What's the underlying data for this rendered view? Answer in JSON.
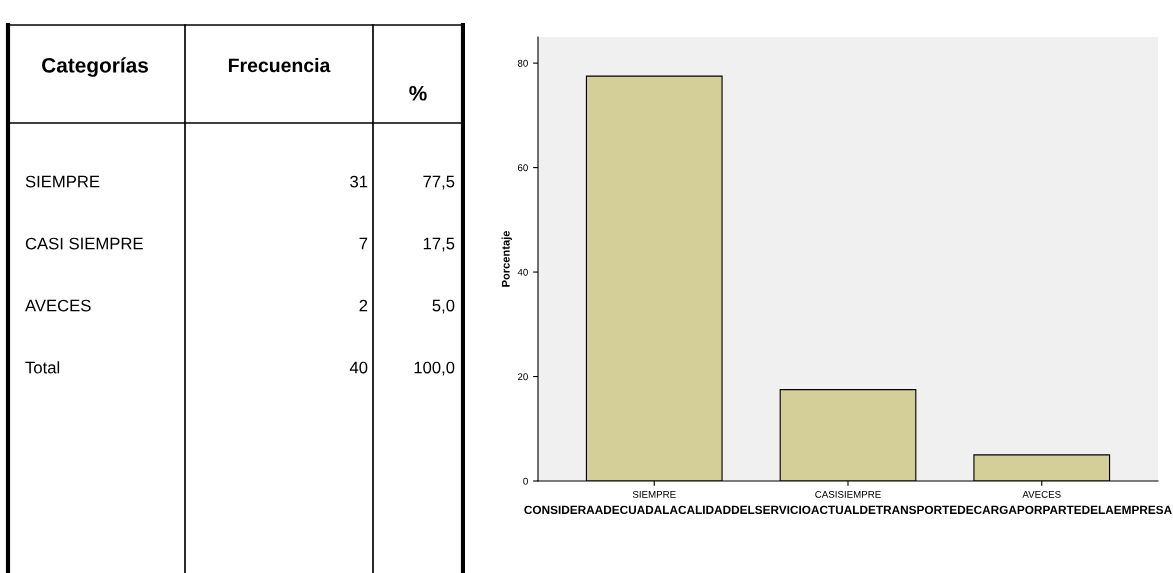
{
  "chart_data": [
    {
      "type": "other",
      "annotations": [
        "Categorías",
        "Frecuencia",
        "%",
        "SIEMPRE",
        "31",
        "77,5",
        "CASI SIEMPRE",
        "7",
        "17,5",
        "AVECES",
        "2",
        "5,0",
        "Total",
        "40",
        "100,0"
      ]
    },
    {
      "type": "bar",
      "categories": [
        "SIEMPRE",
        "CASISIEMPRE",
        "AVECES"
      ],
      "values": [
        77.5,
        17.5,
        5.0
      ],
      "color": "#d4cf98",
      "ylabel": "Porcentaje",
      "xlabel": "CONSIDERAADECUADALACALIDADDELSERVICIOACTUALDETRANSPORTEDECARGAPORPARTEDELAEMPRESA",
      "ylim": [
        0,
        85
      ],
      "yticks": [
        0,
        20,
        40,
        60,
        80
      ],
      "grid": false
    }
  ]
}
